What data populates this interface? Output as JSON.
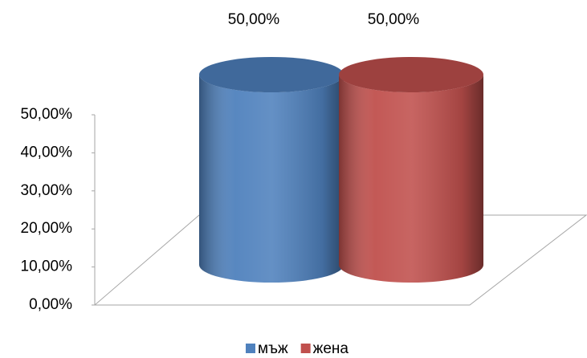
{
  "chart_data": {
    "type": "bar",
    "series": [
      {
        "name": "мъж",
        "color": "#4f81bd",
        "values": [
          50
        ],
        "value_labels": [
          "50,00%"
        ]
      },
      {
        "name": "жена",
        "color": "#c0504d",
        "values": [
          50
        ],
        "value_labels": [
          "50,00%"
        ]
      }
    ],
    "ylim": [
      0,
      50
    ],
    "yticks": [
      {
        "value": 0,
        "label": "0,00%"
      },
      {
        "value": 10,
        "label": "10,00%"
      },
      {
        "value": 20,
        "label": "20,00%"
      },
      {
        "value": 30,
        "label": "30,00%"
      },
      {
        "value": 40,
        "label": "40,00%"
      },
      {
        "value": 50,
        "label": "50,00%"
      }
    ],
    "legend": "bottom"
  }
}
